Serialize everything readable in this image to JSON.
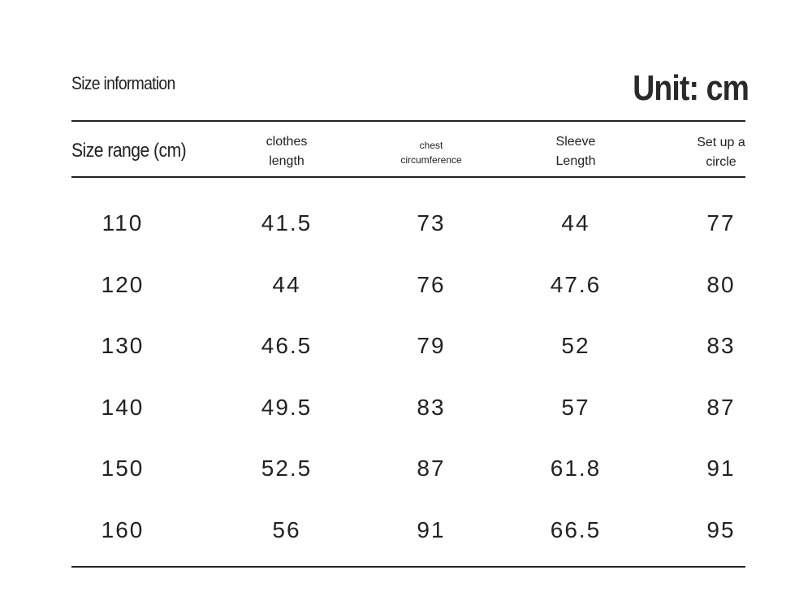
{
  "header": {
    "title": "Size information",
    "unit": "Unit: cm"
  },
  "table": {
    "columns": [
      "Size range (cm)",
      "clothes length",
      "chest circumference",
      "Sleeve Length",
      "Set up a circle"
    ],
    "rows": [
      [
        110,
        41.5,
        73,
        44,
        77
      ],
      [
        120,
        44,
        76,
        47.6,
        80
      ],
      [
        130,
        46.5,
        79,
        52,
        83
      ],
      [
        140,
        49.5,
        83,
        57,
        87
      ],
      [
        150,
        52.5,
        87,
        61.8,
        91
      ],
      [
        160,
        56,
        91,
        66.5,
        95
      ]
    ]
  }
}
